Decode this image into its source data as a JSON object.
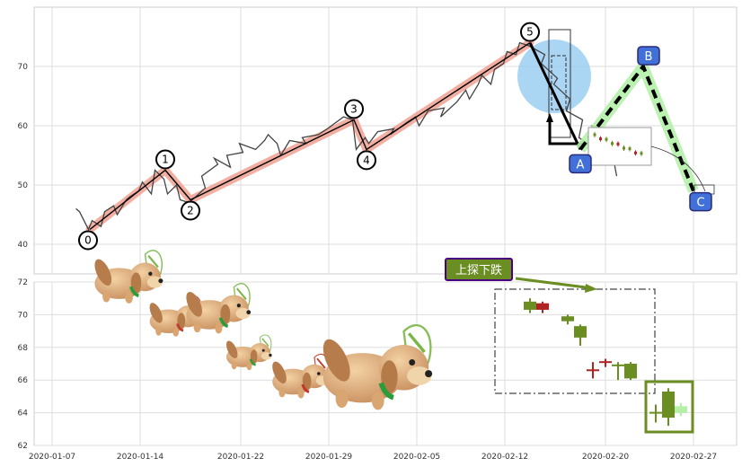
{
  "chart_data": [
    {
      "type": "line",
      "panel": "upper",
      "title": "",
      "xlabel": "",
      "ylabel": "",
      "x_range": [
        "2020-01-07",
        "2020-02-29"
      ],
      "ylim": [
        35,
        80
      ],
      "yticks": [
        "40",
        "50",
        "60",
        "70"
      ],
      "grid": true,
      "series": [
        {
          "points": [
            [
              "2020-01-09",
              46.0
            ],
            [
              "2020-01-09",
              45.5
            ],
            [
              "2020-01-10",
              42.5
            ],
            [
              "2020-01-10",
              44.0
            ],
            [
              "2020-01-11",
              43.0
            ],
            [
              "2020-01-11",
              45.5
            ],
            [
              "2020-01-12",
              46.5
            ],
            [
              "2020-01-12",
              45.0
            ],
            [
              "2020-01-13",
              47.5
            ],
            [
              "2020-01-13",
              48.0
            ],
            [
              "2020-01-14",
              49.0
            ],
            [
              "2020-01-14",
              50.5
            ],
            [
              "2020-01-15",
              48.5
            ],
            [
              "2020-01-15",
              52.5
            ],
            [
              "2020-01-16",
              51.0
            ],
            [
              "2020-01-16",
              48.5
            ],
            [
              "2020-01-17",
              50.0
            ],
            [
              "2020-01-17",
              47.5
            ],
            [
              "2020-01-18",
              47.0
            ],
            [
              "2020-01-19",
              49.5
            ],
            [
              "2020-01-19",
              51.5
            ],
            [
              "2020-01-20",
              53.5
            ],
            [
              "2020-01-20",
              54.5
            ],
            [
              "2020-01-21",
              53.0
            ],
            [
              "2020-01-21",
              55.0
            ],
            [
              "2020-01-22",
              55.5
            ],
            [
              "2020-01-22",
              57.0
            ],
            [
              "2020-01-23",
              56.0
            ],
            [
              "2020-01-24",
              57.5
            ],
            [
              "2020-01-24",
              58.5
            ],
            [
              "2020-01-25",
              57.0
            ],
            [
              "2020-01-25",
              55.0
            ],
            [
              "2020-01-26",
              57.5
            ],
            [
              "2020-01-27",
              57.0
            ],
            [
              "2020-01-27",
              58.0
            ],
            [
              "2020-01-28",
              58.5
            ],
            [
              "2020-01-29",
              59.5
            ],
            [
              "2020-01-30",
              61.5
            ],
            [
              "2020-01-31",
              61.0
            ],
            [
              "2020-01-31",
              56.0
            ],
            [
              "2020-02-01",
              58.0
            ],
            [
              "2020-02-01",
              57.0
            ],
            [
              "2020-02-02",
              59.0
            ],
            [
              "2020-02-03",
              59.5
            ],
            [
              "2020-02-03",
              58.5
            ],
            [
              "2020-02-04",
              60.5
            ],
            [
              "2020-02-05",
              61.5
            ],
            [
              "2020-02-05",
              60.0
            ],
            [
              "2020-02-06",
              62.5
            ],
            [
              "2020-02-07",
              63.0
            ],
            [
              "2020-02-07",
              61.5
            ],
            [
              "2020-02-08",
              64.0
            ],
            [
              "2020-02-09",
              66.0
            ],
            [
              "2020-02-09",
              64.5
            ],
            [
              "2020-02-10",
              67.0
            ],
            [
              "2020-02-10",
              68.5
            ],
            [
              "2020-02-11",
              67.0
            ],
            [
              "2020-02-11",
              69.5
            ],
            [
              "2020-02-12",
              70.5
            ],
            [
              "2020-02-12",
              72.5
            ],
            [
              "2020-02-13",
              72.0
            ],
            [
              "2020-02-13",
              74.0
            ],
            [
              "2020-02-14",
              73.5
            ],
            [
              "2020-02-15",
              72.0
            ],
            [
              "2020-02-15",
              70.5
            ],
            [
              "2020-02-16",
              68.0
            ],
            [
              "2020-02-16",
              67.0
            ],
            [
              "2020-02-17",
              64.5
            ],
            [
              "2020-02-17",
              62.5
            ],
            [
              "2020-02-18",
              61.0
            ],
            [
              "2020-02-18",
              58.0
            ],
            [
              "2020-02-19",
              56.0
            ],
            [
              "2020-02-19",
              60.0
            ],
            [
              "2020-02-20",
              59.5
            ],
            [
              "2020-02-21",
              51.5
            ]
          ],
          "color": "#444444"
        }
      ],
      "elliott_waves": [
        {
          "label": "0",
          "x": "2020-01-10",
          "y": 42.5
        },
        {
          "label": "1",
          "x": "2020-01-16",
          "y": 52.5
        },
        {
          "label": "2",
          "x": "2020-01-18",
          "y": 47.5
        },
        {
          "label": "3",
          "x": "2020-01-31",
          "y": 61.0
        },
        {
          "label": "4",
          "x": "2020-02-01",
          "y": 56.0
        },
        {
          "label": "5",
          "x": "2020-02-14",
          "y": 74.0
        }
      ],
      "abc_waves": [
        {
          "label": "A",
          "x": "2020-02-18",
          "y": 56.0
        },
        {
          "label": "B",
          "x": "2020-02-23",
          "y": 70.0
        },
        {
          "label": "C",
          "x": "2020-02-27",
          "y": 49.0
        }
      ],
      "colors": {
        "wave_band": "#f0a090",
        "abc_band": "#b4f0a8",
        "highlight_circle": "#8ec8f0",
        "abc_badge": "#4070d8"
      }
    },
    {
      "type": "candlestick",
      "panel": "lower",
      "title": "",
      "ylim": [
        62,
        72
      ],
      "yticks": [
        "62",
        "64",
        "66",
        "68",
        "70",
        "72"
      ],
      "xticks": [
        "2020-01-07",
        "2020-01-14",
        "2020-01-22",
        "2020-01-29",
        "2020-02-05",
        "2020-02-12",
        "2020-02-20",
        "2020-02-27"
      ],
      "grid": true,
      "callout": {
        "text": "上探下跌",
        "bg": "#6b8e23",
        "border": "#4b0082"
      },
      "candles": [
        {
          "x": "2020-02-14",
          "open": 70.3,
          "close": 70.8,
          "high": 71.0,
          "low": 70.1,
          "color": "#6b8e23"
        },
        {
          "x": "2020-02-15",
          "open": 70.7,
          "close": 70.3,
          "high": 70.8,
          "low": 70.1,
          "color": "#b22222"
        },
        {
          "x": "2020-02-17",
          "open": 69.6,
          "close": 69.9,
          "high": 70.0,
          "low": 69.4,
          "color": "#6b8e23"
        },
        {
          "x": "2020-02-18",
          "open": 69.3,
          "close": 68.6,
          "high": 69.4,
          "low": 68.1,
          "color": "#6b8e23"
        },
        {
          "x": "2020-02-19",
          "open": 66.6,
          "close": 66.6,
          "high": 67.1,
          "low": 66.1,
          "color": "#b22222"
        },
        {
          "x": "2020-02-20",
          "open": 67.1,
          "close": 67.1,
          "high": 67.3,
          "low": 66.8,
          "color": "#b22222"
        },
        {
          "x": "2020-02-21",
          "open": 66.9,
          "close": 66.9,
          "high": 67.1,
          "low": 66.0,
          "color": "#6b8e23"
        },
        {
          "x": "2020-02-22",
          "open": 67.0,
          "close": 66.1,
          "high": 67.1,
          "low": 66.0,
          "color": "#6b8e23"
        },
        {
          "x": "2020-02-24",
          "open": 64.0,
          "close": 64.0,
          "high": 64.5,
          "low": 63.4,
          "color": "#6b8e23"
        },
        {
          "x": "2020-02-25",
          "open": 65.3,
          "close": 63.7,
          "high": 65.5,
          "low": 63.2,
          "color": "#6b8e23"
        },
        {
          "x": "2020-02-26",
          "open": 64.4,
          "close": 64.0,
          "high": 64.6,
          "low": 63.8,
          "color": "#b4f0a8"
        }
      ]
    }
  ]
}
